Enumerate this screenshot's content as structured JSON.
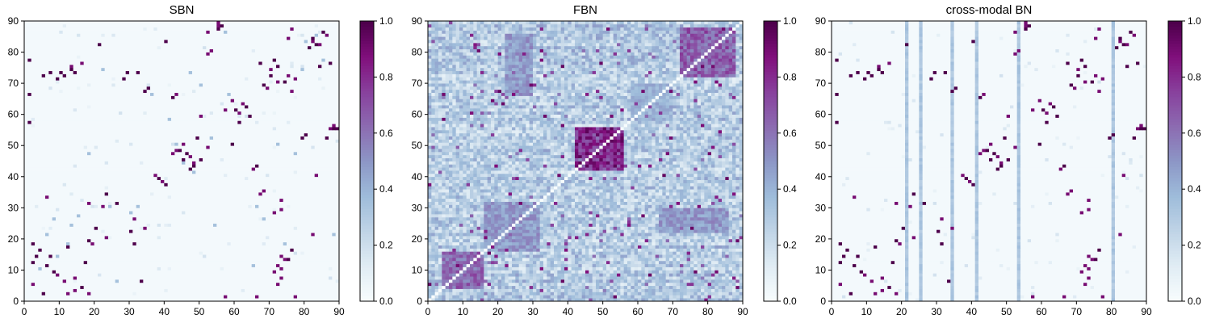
{
  "figure": {
    "colormap": {
      "name": "BuPu",
      "stops": [
        "#f7fcfd",
        "#e0ecf4",
        "#bfd3e6",
        "#9ebcda",
        "#8c96c6",
        "#8c6bb1",
        "#88419d",
        "#810f7c",
        "#4d004b"
      ]
    }
  },
  "chart_data": [
    {
      "type": "heatmap",
      "title": "SBN",
      "xlabel": "",
      "ylabel": "",
      "xlim": [
        0,
        90
      ],
      "ylim": [
        0,
        90
      ],
      "xticks": [
        0,
        10,
        20,
        30,
        40,
        50,
        60,
        70,
        80,
        90
      ],
      "yticks": [
        0,
        10,
        20,
        30,
        40,
        50,
        60,
        70,
        80,
        90
      ],
      "colorbar": {
        "range": [
          0.0,
          1.0
        ],
        "ticks": [
          "0.0",
          "0.2",
          "0.4",
          "0.6",
          "0.8",
          "1.0"
        ]
      },
      "matrix_size": 90,
      "background_value": 0.02,
      "strong_cells": [
        [
          1,
          77
        ],
        [
          1,
          66
        ],
        [
          1,
          57
        ],
        [
          2,
          18
        ],
        [
          2,
          12
        ],
        [
          3,
          14
        ],
        [
          4,
          16
        ],
        [
          5,
          72
        ],
        [
          5,
          2
        ],
        [
          6,
          11
        ],
        [
          7,
          73
        ],
        [
          7,
          14
        ],
        [
          8,
          9
        ],
        [
          9,
          71
        ],
        [
          10,
          73
        ],
        [
          11,
          72
        ],
        [
          12,
          17
        ],
        [
          13,
          74
        ],
        [
          14,
          73
        ],
        [
          16,
          4
        ],
        [
          17,
          12
        ],
        [
          18,
          19
        ],
        [
          20,
          23
        ],
        [
          21,
          82
        ],
        [
          23,
          34
        ],
        [
          26,
          31
        ],
        [
          28,
          71
        ],
        [
          29,
          73
        ],
        [
          30,
          22
        ],
        [
          31,
          18
        ],
        [
          32,
          73
        ],
        [
          33,
          6
        ],
        [
          34,
          67
        ],
        [
          35,
          68
        ],
        [
          38,
          39
        ],
        [
          40,
          37
        ],
        [
          40,
          83
        ],
        [
          42,
          65
        ],
        [
          44,
          48
        ],
        [
          45,
          45
        ],
        [
          46,
          47
        ],
        [
          47,
          42
        ],
        [
          48,
          43
        ],
        [
          49,
          52
        ],
        [
          50,
          45
        ],
        [
          55,
          87
        ],
        [
          56,
          88
        ],
        [
          59,
          50
        ],
        [
          60,
          61
        ],
        [
          61,
          57
        ],
        [
          63,
          62
        ],
        [
          64,
          59
        ],
        [
          66,
          43
        ],
        [
          67,
          76
        ],
        [
          68,
          69
        ],
        [
          70,
          72
        ],
        [
          71,
          77
        ],
        [
          72,
          75
        ],
        [
          74,
          70
        ],
        [
          75,
          13
        ],
        [
          76,
          16
        ],
        [
          79,
          52
        ],
        [
          80,
          53
        ],
        [
          81,
          81
        ],
        [
          82,
          84
        ],
        [
          83,
          82
        ],
        [
          84,
          75
        ],
        [
          85,
          86
        ],
        [
          86,
          52
        ],
        [
          87,
          76
        ],
        [
          88,
          55
        ],
        [
          89,
          55
        ]
      ],
      "medium_cells": [
        [
          4,
          10
        ],
        [
          6,
          21
        ],
        [
          8,
          26
        ],
        [
          9,
          14
        ],
        [
          12,
          18
        ],
        [
          13,
          24
        ],
        [
          15,
          27
        ],
        [
          18,
          47
        ],
        [
          22,
          74
        ],
        [
          24,
          30
        ],
        [
          26,
          6
        ],
        [
          30,
          28
        ],
        [
          32,
          30
        ],
        [
          36,
          66
        ],
        [
          41,
          58
        ],
        [
          43,
          50
        ],
        [
          45,
          44
        ],
        [
          47,
          73
        ],
        [
          48,
          41
        ],
        [
          50,
          69
        ],
        [
          53,
          52
        ],
        [
          54,
          24
        ],
        [
          57,
          86
        ],
        [
          58,
          66
        ],
        [
          60,
          61
        ],
        [
          62,
          63
        ],
        [
          65,
          11
        ],
        [
          66,
          30
        ],
        [
          68,
          26
        ],
        [
          72,
          50
        ],
        [
          74,
          18
        ],
        [
          77,
          47
        ],
        [
          79,
          74
        ],
        [
          80,
          83
        ],
        [
          83,
          85
        ],
        [
          85,
          77
        ],
        [
          88,
          21
        ]
      ]
    },
    {
      "type": "heatmap",
      "title": "FBN",
      "xlabel": "",
      "ylabel": "",
      "xlim": [
        0,
        90
      ],
      "ylim": [
        0,
        90
      ],
      "xticks": [
        0,
        10,
        20,
        30,
        40,
        50,
        60,
        70,
        80,
        90
      ],
      "yticks": [
        0,
        10,
        20,
        30,
        40,
        50,
        60,
        70,
        80,
        90
      ],
      "colorbar": {
        "range": [
          0.0,
          1.0
        ],
        "ticks": [
          "0.0",
          "0.2",
          "0.4",
          "0.6",
          "0.8",
          "1.0"
        ]
      },
      "matrix_size": 90,
      "diagonal_value": 0.0,
      "dense_blocks": [
        {
          "x_range": [
            42,
            56
          ],
          "y_range": [
            42,
            56
          ],
          "value": 0.92
        },
        {
          "x_range": [
            72,
            88
          ],
          "y_range": [
            72,
            88
          ],
          "value": 0.75
        },
        {
          "x_range": [
            4,
            16
          ],
          "y_range": [
            4,
            16
          ],
          "value": 0.72
        },
        {
          "x_range": [
            16,
            32
          ],
          "y_range": [
            16,
            32
          ],
          "value": 0.55
        },
        {
          "x_range": [
            58,
            70
          ],
          "y_range": [
            58,
            70
          ],
          "value": 0.45
        },
        {
          "x_range": [
            22,
            30
          ],
          "y_range": [
            66,
            86
          ],
          "value": 0.55
        },
        {
          "x_range": [
            66,
            86
          ],
          "y_range": [
            22,
            30
          ],
          "value": 0.55
        }
      ]
    },
    {
      "type": "heatmap",
      "title": "cross-modal BN",
      "xlabel": "",
      "ylabel": "",
      "xlim": [
        0,
        90
      ],
      "ylim": [
        0,
        90
      ],
      "xticks": [
        0,
        10,
        20,
        30,
        40,
        50,
        60,
        70,
        80,
        90
      ],
      "yticks": [
        0,
        10,
        20,
        30,
        40,
        50,
        60,
        70,
        80,
        90
      ],
      "colorbar": {
        "range": [
          0.0,
          1.0
        ],
        "ticks": [
          "0.0",
          "0.2",
          "0.4",
          "0.6",
          "0.8",
          "1.0"
        ]
      },
      "matrix_size": 90,
      "background_value": 0.02,
      "vertical_stripe_columns": [
        21,
        25,
        34,
        41,
        53,
        80
      ],
      "stripe_value": 0.32,
      "strong_cells": [
        [
          1,
          77
        ],
        [
          1,
          66
        ],
        [
          1,
          57
        ],
        [
          2,
          18
        ],
        [
          2,
          12
        ],
        [
          3,
          14
        ],
        [
          4,
          16
        ],
        [
          5,
          72
        ],
        [
          5,
          2
        ],
        [
          6,
          11
        ],
        [
          7,
          73
        ],
        [
          7,
          14
        ],
        [
          8,
          9
        ],
        [
          9,
          71
        ],
        [
          10,
          73
        ],
        [
          11,
          72
        ],
        [
          12,
          17
        ],
        [
          13,
          74
        ],
        [
          14,
          73
        ],
        [
          16,
          4
        ],
        [
          17,
          12
        ],
        [
          18,
          19
        ],
        [
          20,
          23
        ],
        [
          21,
          82
        ],
        [
          23,
          34
        ],
        [
          26,
          31
        ],
        [
          28,
          71
        ],
        [
          29,
          73
        ],
        [
          30,
          22
        ],
        [
          31,
          18
        ],
        [
          32,
          73
        ],
        [
          33,
          6
        ],
        [
          34,
          67
        ],
        [
          35,
          68
        ],
        [
          38,
          39
        ],
        [
          40,
          37
        ],
        [
          40,
          83
        ],
        [
          42,
          65
        ],
        [
          44,
          48
        ],
        [
          45,
          45
        ],
        [
          46,
          47
        ],
        [
          47,
          42
        ],
        [
          48,
          43
        ],
        [
          49,
          52
        ],
        [
          50,
          45
        ],
        [
          55,
          87
        ],
        [
          56,
          88
        ],
        [
          59,
          50
        ],
        [
          60,
          61
        ],
        [
          61,
          57
        ],
        [
          63,
          62
        ],
        [
          64,
          59
        ],
        [
          66,
          43
        ],
        [
          67,
          76
        ],
        [
          68,
          69
        ],
        [
          70,
          72
        ],
        [
          71,
          77
        ],
        [
          72,
          75
        ],
        [
          74,
          70
        ],
        [
          75,
          13
        ],
        [
          76,
          16
        ],
        [
          79,
          52
        ],
        [
          80,
          53
        ],
        [
          81,
          81
        ],
        [
          82,
          84
        ],
        [
          83,
          82
        ],
        [
          84,
          75
        ],
        [
          85,
          86
        ],
        [
          86,
          52
        ],
        [
          87,
          76
        ],
        [
          88,
          55
        ],
        [
          89,
          55
        ]
      ]
    }
  ]
}
